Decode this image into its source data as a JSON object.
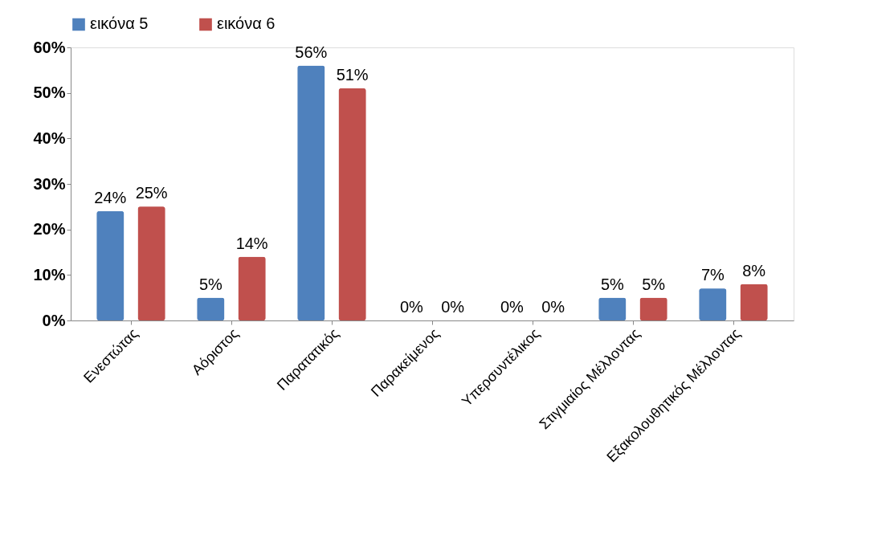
{
  "chart_data": {
    "type": "bar",
    "categories": [
      "Ενεστώτας",
      "Αόριστος",
      "Παρατατικός",
      "Παρακείμενος",
      "Υπερσυντέλικος",
      "Στιγμιαίος Μέλλοντας",
      "Εξακολουθητικός Μέλλοντας"
    ],
    "series": [
      {
        "name": "εικόνα 5",
        "color": "#4f81bd",
        "values": [
          24,
          5,
          56,
          0,
          0,
          5,
          7
        ],
        "value_labels": [
          "24%",
          "5%",
          "56%",
          "0%",
          "0%",
          "5%",
          "7%"
        ]
      },
      {
        "name": "εικόνα 6",
        "color": "#c0504d",
        "values": [
          25,
          14,
          51,
          0,
          0,
          5,
          8
        ],
        "value_labels": [
          "25%",
          "14%",
          "51%",
          "0%",
          "0%",
          "5%",
          "8%"
        ]
      }
    ],
    "ylim": [
      0,
      60
    ],
    "yticks": [
      {
        "value": 0,
        "label": "0%"
      },
      {
        "value": 10,
        "label": "10%"
      },
      {
        "value": 20,
        "label": "20%"
      },
      {
        "value": 30,
        "label": "30%"
      },
      {
        "value": 40,
        "label": "40%"
      },
      {
        "value": 50,
        "label": "50%"
      },
      {
        "value": 60,
        "label": "60%"
      }
    ],
    "legend": "top",
    "grid": false
  }
}
